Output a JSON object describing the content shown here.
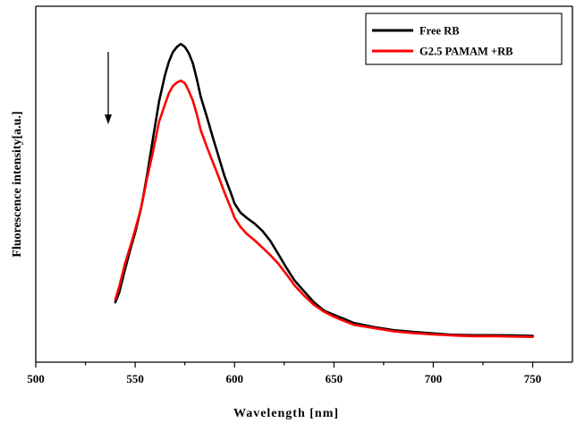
{
  "chart_data": {
    "type": "line",
    "xlabel": "Wavelength [nm]",
    "ylabel": "Fluorescence intensity[a.u.]",
    "xlim": [
      500,
      770
    ],
    "ylim": [
      0,
      100
    ],
    "x_ticks": [
      500,
      550,
      600,
      650,
      700,
      750
    ],
    "x_tick_labels": [
      "500",
      "550",
      "600",
      "650",
      "700",
      "750"
    ],
    "y_ticks_shown": false,
    "grid": false,
    "legend_position": "top-right",
    "annotation": "downward arrow near 537 nm indicating fluorescence decrease",
    "series": [
      {
        "name": "Free RB",
        "color": "#000000",
        "x": [
          540,
          542,
          545,
          548,
          550,
          553,
          556,
          559,
          562,
          565,
          567,
          569,
          571,
          573,
          575,
          577,
          579,
          581,
          583,
          586,
          589,
          592,
          595,
          598,
          600,
          603,
          606,
          610,
          614,
          618,
          622,
          626,
          630,
          635,
          640,
          645,
          650,
          655,
          660,
          670,
          680,
          690,
          700,
          710,
          720,
          730,
          740,
          750
        ],
        "y": [
          16.8,
          19.6,
          26.3,
          32.6,
          36.4,
          43.3,
          52.5,
          63.0,
          73.2,
          80.6,
          84.5,
          87.1,
          88.6,
          89.4,
          88.6,
          86.8,
          84.0,
          79.6,
          74.6,
          69.1,
          63.3,
          57.8,
          52.2,
          47.8,
          44.6,
          42.0,
          40.6,
          39.0,
          36.9,
          34.1,
          30.4,
          26.6,
          23.1,
          19.9,
          16.8,
          14.5,
          13.3,
          12.2,
          11.0,
          9.9,
          9.0,
          8.5,
          8.1,
          7.7,
          7.6,
          7.6,
          7.5,
          7.4
        ]
      },
      {
        "name": "G2.5 PAMAM +RB",
        "color": "#ff0000",
        "x": [
          540,
          542,
          545,
          548,
          550,
          553,
          556,
          559,
          562,
          565,
          567,
          569,
          571,
          573,
          575,
          577,
          579,
          581,
          583,
          586,
          589,
          592,
          595,
          598,
          600,
          603,
          606,
          610,
          614,
          618,
          622,
          626,
          630,
          635,
          640,
          645,
          650,
          655,
          660,
          670,
          680,
          690,
          700,
          710,
          720,
          730,
          740,
          750
        ],
        "y": [
          17.6,
          21.2,
          27.9,
          33.4,
          37.2,
          43.4,
          51.6,
          59.2,
          67.5,
          72.4,
          75.6,
          77.6,
          78.6,
          79.1,
          78.4,
          76.2,
          73.5,
          69.7,
          65.2,
          60.6,
          56.3,
          52.1,
          47.6,
          43.5,
          40.6,
          38.0,
          36.1,
          34.3,
          32.2,
          30.1,
          27.7,
          24.8,
          21.7,
          18.7,
          16.1,
          14.2,
          12.8,
          11.6,
          10.5,
          9.6,
          8.7,
          8.2,
          7.8,
          7.5,
          7.3,
          7.3,
          7.2,
          7.1
        ]
      }
    ]
  }
}
